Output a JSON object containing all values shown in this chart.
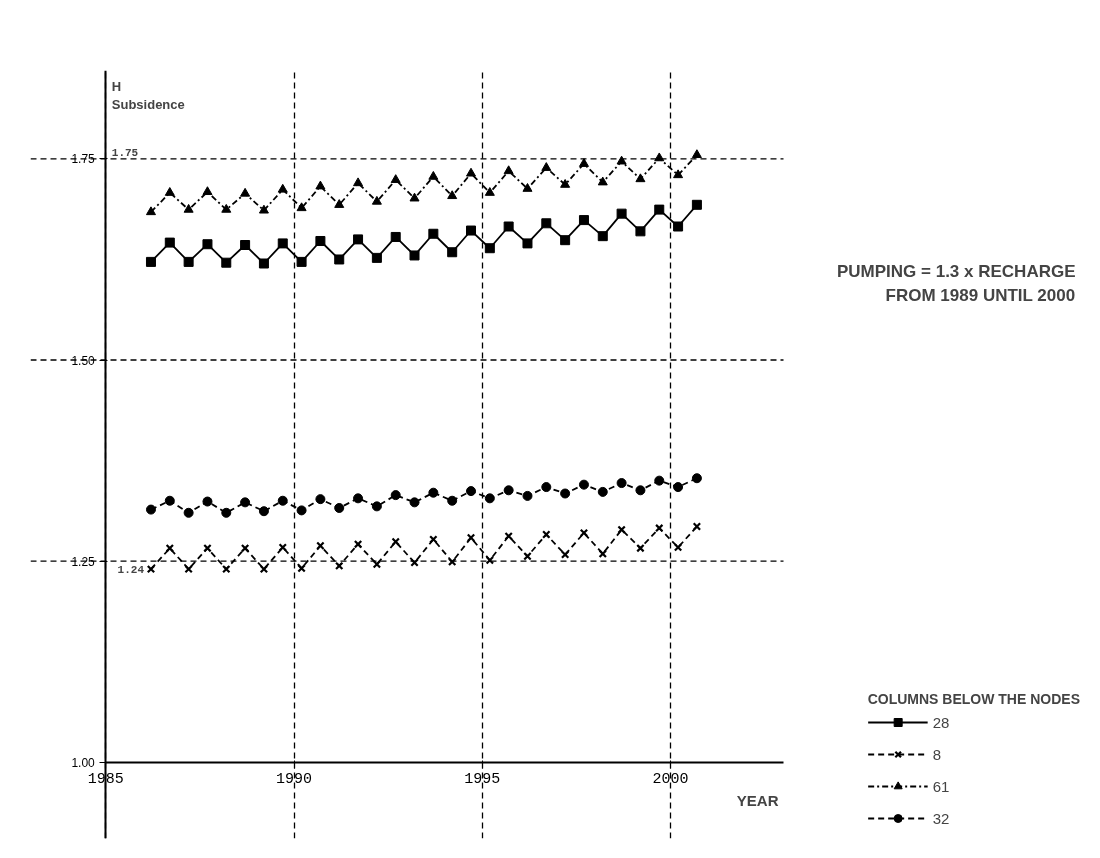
{
  "chart_data": {
    "type": "line",
    "xlabel": "YEAR",
    "ylabel": "H\nSubsidence",
    "legend_title": "COLUMNS BELOW THE NODES",
    "x": [
      1986.2,
      1986.7,
      1987.2,
      1987.7,
      1988.2,
      1988.7,
      1989.2,
      1989.7,
      1990.2,
      1990.7,
      1991.2,
      1991.7,
      1992.2,
      1992.7,
      1993.2,
      1993.7,
      1994.2,
      1994.7,
      1995.2,
      1995.7,
      1996.2,
      1996.7,
      1997.2,
      1997.7,
      1998.2,
      1998.7,
      1999.2,
      1999.7,
      2000.2,
      2000.7
    ],
    "series": [
      {
        "name": "28",
        "color": "#000000",
        "marker": "square",
        "line_style": "solid",
        "values": [
          1.622,
          1.646,
          1.622,
          1.644,
          1.621,
          1.643,
          1.62,
          1.645,
          1.622,
          1.648,
          1.625,
          1.65,
          1.627,
          1.653,
          1.63,
          1.657,
          1.634,
          1.661,
          1.639,
          1.666,
          1.645,
          1.67,
          1.649,
          1.674,
          1.654,
          1.682,
          1.66,
          1.687,
          1.666,
          1.693
        ]
      },
      {
        "name": "8",
        "color": "#000000",
        "marker": "cross",
        "line_style": "dashed",
        "values": [
          1.24,
          1.266,
          1.24,
          1.266,
          1.24,
          1.266,
          1.24,
          1.267,
          1.241,
          1.269,
          1.244,
          1.271,
          1.246,
          1.274,
          1.248,
          1.277,
          1.249,
          1.279,
          1.251,
          1.281,
          1.256,
          1.283,
          1.258,
          1.285,
          1.259,
          1.289,
          1.266,
          1.291,
          1.267,
          1.293
        ]
      },
      {
        "name": "61",
        "color": "#000000",
        "marker": "triangle",
        "line_style": "dashdot",
        "values": [
          1.684,
          1.708,
          1.687,
          1.709,
          1.687,
          1.707,
          1.686,
          1.712,
          1.689,
          1.716,
          1.693,
          1.72,
          1.697,
          1.724,
          1.701,
          1.728,
          1.704,
          1.732,
          1.708,
          1.735,
          1.713,
          1.739,
          1.718,
          1.744,
          1.721,
          1.747,
          1.725,
          1.751,
          1.73,
          1.755
        ]
      },
      {
        "name": "32",
        "color": "#000000",
        "marker": "circle",
        "line_style": "dashed",
        "values": [
          1.314,
          1.325,
          1.31,
          1.324,
          1.31,
          1.323,
          1.312,
          1.325,
          1.313,
          1.327,
          1.316,
          1.328,
          1.318,
          1.332,
          1.323,
          1.335,
          1.325,
          1.337,
          1.328,
          1.338,
          1.331,
          1.342,
          1.334,
          1.345,
          1.336,
          1.347,
          1.338,
          1.35,
          1.342,
          1.353
        ]
      }
    ],
    "xlim": [
      1983,
      2003
    ],
    "ylim": [
      0.905,
      1.86
    ],
    "xticks": [
      1985,
      1990,
      1995,
      2000
    ],
    "yticks": [
      {
        "value": 1,
        "label": "1.00"
      },
      1.25,
      {
        "value": 1.5,
        "label": "1.50"
      },
      1.75
    ],
    "grid": "x",
    "legend": "right",
    "ref_lines": [
      {
        "axis": "y",
        "value": 1.25
      },
      {
        "axis": "y",
        "value": 1.5
      },
      {
        "axis": "y",
        "value": 1.75,
        "label": "1.75"
      }
    ],
    "annotations": [
      "PUMPING = 1.3 x RECHARGE\nFROM 1989 UNTIL 2000",
      {
        "text": "1.24",
        "x": 1986.2,
        "y": 1.24
      }
    ]
  }
}
